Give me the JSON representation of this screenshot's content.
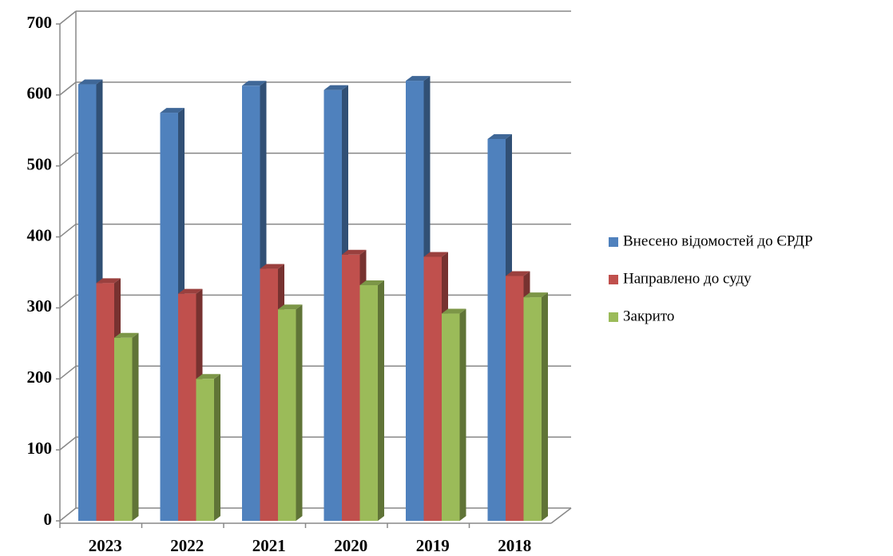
{
  "chart_data": {
    "type": "bar3d",
    "categories": [
      "2023",
      "2022",
      "2021",
      "2020",
      "2019",
      "2018"
    ],
    "series": [
      {
        "name": "Внесено відомостей до ЄРДР",
        "color": "#4f81bd",
        "values": [
          615,
          575,
          613,
          607,
          620,
          538
        ]
      },
      {
        "name": "Направлено до суду",
        "color": "#c0504d",
        "values": [
          335,
          320,
          355,
          375,
          372,
          345
        ]
      },
      {
        "name": "Закрито",
        "color": "#9bbb59",
        "values": [
          258,
          200,
          298,
          332,
          292,
          315
        ]
      }
    ],
    "ylim": [
      0,
      700
    ],
    "yticks": [
      0,
      100,
      200,
      300,
      400,
      500,
      600,
      700
    ],
    "grid": true,
    "legend": "right"
  }
}
